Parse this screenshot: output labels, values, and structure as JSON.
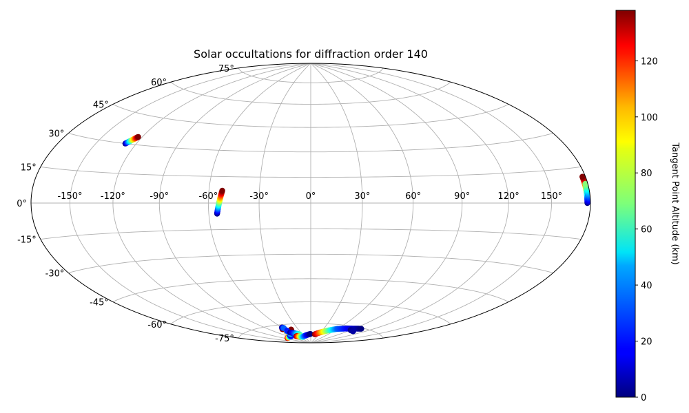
{
  "chart_data": {
    "type": "scatter",
    "projection": "hammer",
    "title": "Solar occultations for diffraction order 140",
    "grid": true,
    "longitude_ticks": [
      "-150°",
      "-120°",
      "-90°",
      "-60°",
      "-30°",
      "0°",
      "30°",
      "60°",
      "90°",
      "120°",
      "150°"
    ],
    "latitude_ticks": [
      "-75°",
      "-60°",
      "-45°",
      "-30°",
      "-15°",
      "0°",
      "15°",
      "30°",
      "45°",
      "60°",
      "75°"
    ],
    "colorbar": {
      "label": "Tangent Point Altitude (km)",
      "colormap": "jet",
      "range": [
        0,
        138
      ],
      "ticks": [
        "0",
        "20",
        "40",
        "60",
        "80",
        "100",
        "120"
      ]
    },
    "tracks": [
      {
        "lon_start": -128,
        "lat_start": 30,
        "lon_end": -123,
        "lat_end": 34,
        "alt_start": 0,
        "alt_end": 138
      },
      {
        "lon_start": -55,
        "lat_start": -6,
        "lon_end": -52,
        "lat_end": 7,
        "alt_start": 0,
        "alt_end": 138
      },
      {
        "lon_start": 177.5,
        "lat_start": 0,
        "lon_end": 177.5,
        "lat_end": 11,
        "alt_start": 0,
        "alt_end": 138
      },
      {
        "lon_start": 178.5,
        "lat_start": 0.5,
        "lon_end": 178,
        "lat_end": 8,
        "alt_start": 10,
        "alt_end": 70
      },
      {
        "lon_start": -60,
        "lat_start": -78.5,
        "lon_end": -64,
        "lat_end": -78,
        "alt_start": 0,
        "alt_end": 138
      },
      {
        "lon_start": -50,
        "lat_start": -80,
        "lon_end": -47,
        "lat_end": -79,
        "alt_start": 0,
        "alt_end": 138
      },
      {
        "lon_start": -60,
        "lat_start": -77,
        "lon_end": -58,
        "lat_end": -77.5,
        "alt_start": 0,
        "alt_end": 30
      },
      {
        "lon_start": -110,
        "lat_start": -84,
        "lon_end": -80,
        "lat_end": -83.5,
        "alt_start": 138,
        "alt_end": 20
      },
      {
        "lon_start": -75,
        "lat_start": -82.5,
        "lon_end": -60,
        "lat_end": -81.5,
        "alt_start": 5,
        "alt_end": 50
      },
      {
        "lon_start": -64,
        "lat_start": -80,
        "lon_end": -60,
        "lat_end": -79.5,
        "alt_start": 130,
        "alt_end": 20
      },
      {
        "lon_start": -60,
        "lat_start": -81,
        "lon_end": -40,
        "lat_end": -83,
        "alt_start": 0,
        "alt_end": 60
      },
      {
        "lon_start": -62,
        "lat_start": -84,
        "lon_end": -40,
        "lat_end": -85,
        "alt_start": 138,
        "alt_end": 50
      },
      {
        "lon_start": -40,
        "lat_start": -85,
        "lon_end": -1,
        "lat_end": -83,
        "alt_start": 50,
        "alt_end": 0
      },
      {
        "lon_start": 15,
        "lat_start": -83.2,
        "lon_end": 60,
        "lat_end": -78,
        "alt_start": 138,
        "alt_end": 30
      },
      {
        "lon_start": 60,
        "lat_start": -78,
        "lon_end": 102,
        "lat_end": -75.5,
        "alt_start": 30,
        "alt_end": 0
      },
      {
        "lon_start": 90,
        "lat_start": -77.5,
        "lon_end": 100,
        "lat_end": -77.8,
        "alt_start": 0,
        "alt_end": 5
      }
    ]
  }
}
